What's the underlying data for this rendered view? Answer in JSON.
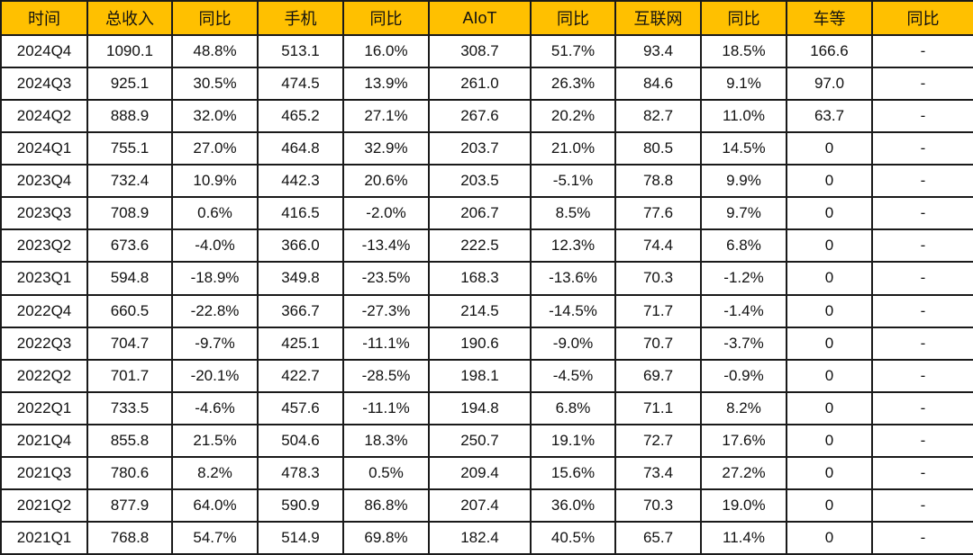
{
  "colors": {
    "header_bg": "#FFC000",
    "border": "#1a1a1a"
  },
  "table": {
    "headers": [
      "时间",
      "总收入",
      "同比",
      "手机",
      "同比",
      "AIoT",
      "同比",
      "互联网",
      "同比",
      "车等",
      "同比"
    ],
    "rows": [
      [
        "2024Q4",
        "1090.1",
        "48.8%",
        "513.1",
        "16.0%",
        "308.7",
        "51.7%",
        "93.4",
        "18.5%",
        "166.6",
        "-"
      ],
      [
        "2024Q3",
        "925.1",
        "30.5%",
        "474.5",
        "13.9%",
        "261.0",
        "26.3%",
        "84.6",
        "9.1%",
        "97.0",
        "-"
      ],
      [
        "2024Q2",
        "888.9",
        "32.0%",
        "465.2",
        "27.1%",
        "267.6",
        "20.2%",
        "82.7",
        "11.0%",
        "63.7",
        "-"
      ],
      [
        "2024Q1",
        "755.1",
        "27.0%",
        "464.8",
        "32.9%",
        "203.7",
        "21.0%",
        "80.5",
        "14.5%",
        "0",
        "-"
      ],
      [
        "2023Q4",
        "732.4",
        "10.9%",
        "442.3",
        "20.6%",
        "203.5",
        "-5.1%",
        "78.8",
        "9.9%",
        "0",
        "-"
      ],
      [
        "2023Q3",
        "708.9",
        "0.6%",
        "416.5",
        "-2.0%",
        "206.7",
        "8.5%",
        "77.6",
        "9.7%",
        "0",
        "-"
      ],
      [
        "2023Q2",
        "673.6",
        "-4.0%",
        "366.0",
        "-13.4%",
        "222.5",
        "12.3%",
        "74.4",
        "6.8%",
        "0",
        "-"
      ],
      [
        "2023Q1",
        "594.8",
        "-18.9%",
        "349.8",
        "-23.5%",
        "168.3",
        "-13.6%",
        "70.3",
        "-1.2%",
        "0",
        "-"
      ],
      [
        "2022Q4",
        "660.5",
        "-22.8%",
        "366.7",
        "-27.3%",
        "214.5",
        "-14.5%",
        "71.7",
        "-1.4%",
        "0",
        "-"
      ],
      [
        "2022Q3",
        "704.7",
        "-9.7%",
        "425.1",
        "-11.1%",
        "190.6",
        "-9.0%",
        "70.7",
        "-3.7%",
        "0",
        "-"
      ],
      [
        "2022Q2",
        "701.7",
        "-20.1%",
        "422.7",
        "-28.5%",
        "198.1",
        "-4.5%",
        "69.7",
        "-0.9%",
        "0",
        "-"
      ],
      [
        "2022Q1",
        "733.5",
        "-4.6%",
        "457.6",
        "-11.1%",
        "194.8",
        "6.8%",
        "71.1",
        "8.2%",
        "0",
        "-"
      ],
      [
        "2021Q4",
        "855.8",
        "21.5%",
        "504.6",
        "18.3%",
        "250.7",
        "19.1%",
        "72.7",
        "17.6%",
        "0",
        "-"
      ],
      [
        "2021Q3",
        "780.6",
        "8.2%",
        "478.3",
        "0.5%",
        "209.4",
        "15.6%",
        "73.4",
        "27.2%",
        "0",
        "-"
      ],
      [
        "2021Q2",
        "877.9",
        "64.0%",
        "590.9",
        "86.8%",
        "207.4",
        "36.0%",
        "70.3",
        "19.0%",
        "0",
        "-"
      ],
      [
        "2021Q1",
        "768.8",
        "54.7%",
        "514.9",
        "69.8%",
        "182.4",
        "40.5%",
        "65.7",
        "11.4%",
        "0",
        "-"
      ]
    ]
  }
}
